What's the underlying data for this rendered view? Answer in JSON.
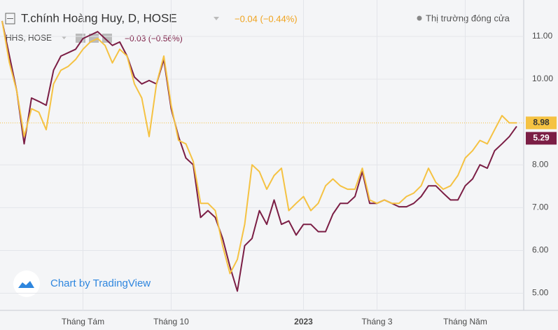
{
  "chart_data": {
    "type": "line",
    "header": {
      "title": "T.chính Hoàng Huy, D, HOSE",
      "change": "−0.04 (−0.44%)",
      "status": "Thị trường đóng cửa",
      "compare_title": "HHS, HOSE",
      "compare_change": "−0.03 (−0.56%)",
      "watermark": "Chart by TradingView"
    },
    "categories": [
      null,
      null,
      null,
      null,
      null,
      null,
      null,
      null,
      null,
      null,
      null,
      "Tháng Tám",
      null,
      null,
      null,
      null,
      null,
      null,
      null,
      null,
      null,
      null,
      null,
      "Tháng 10",
      null,
      null,
      null,
      null,
      null,
      null,
      null,
      null,
      null,
      null,
      null,
      null,
      null,
      null,
      null,
      null,
      null,
      "2023",
      null,
      null,
      null,
      null,
      null,
      null,
      null,
      null,
      null,
      "Tháng 3",
      null,
      null,
      null,
      null,
      null,
      null,
      null,
      null,
      null,
      null,
      null,
      "Tháng Năm",
      null,
      null,
      null,
      null,
      null,
      null,
      null
    ],
    "series": [
      {
        "name": "T.chính Hoàng Huy",
        "color": "#f5c242",
        "last_label": "8.98",
        "values": [
          11.36,
          10.38,
          9.72,
          8.66,
          9.31,
          9.23,
          8.82,
          9.89,
          10.21,
          10.3,
          10.46,
          10.7,
          10.87,
          10.95,
          10.79,
          10.38,
          10.7,
          10.54,
          9.89,
          9.56,
          8.66,
          9.89,
          10.54,
          9.39,
          8.57,
          8.49,
          8.08,
          7.1,
          7.1,
          6.93,
          6.11,
          5.46,
          5.79,
          6.61,
          8.0,
          7.84,
          7.43,
          7.75,
          7.92,
          6.93,
          7.1,
          7.26,
          6.93,
          7.1,
          7.51,
          7.67,
          7.51,
          7.43,
          7.43,
          7.92,
          7.18,
          7.1,
          7.18,
          7.1,
          7.1,
          7.26,
          7.34,
          7.51,
          7.92,
          7.59,
          7.43,
          7.51,
          7.75,
          8.16,
          8.33,
          8.57,
          8.49,
          8.82,
          9.15,
          8.98,
          8.98
        ]
      },
      {
        "name": "HHS",
        "color": "#7b1e45",
        "last_label": "5.29",
        "values": [
          11.36,
          10.54,
          9.72,
          8.49,
          9.56,
          9.48,
          9.39,
          10.21,
          10.54,
          10.62,
          10.7,
          10.95,
          11.03,
          11.11,
          10.95,
          10.79,
          10.87,
          10.54,
          10.05,
          9.89,
          9.97,
          9.89,
          10.46,
          9.31,
          8.66,
          8.16,
          8.0,
          6.77,
          6.93,
          6.77,
          6.28,
          5.62,
          5.05,
          6.11,
          6.28,
          6.93,
          6.61,
          7.18,
          6.61,
          6.69,
          6.36,
          6.61,
          6.61,
          6.44,
          6.44,
          6.85,
          7.1,
          7.1,
          7.26,
          7.84,
          7.1,
          7.1,
          7.18,
          7.1,
          7.02,
          7.02,
          7.1,
          7.26,
          7.51,
          7.51,
          7.34,
          7.18,
          7.18,
          7.51,
          7.67,
          8.0,
          7.92,
          8.33,
          8.49,
          8.66,
          8.9
        ]
      }
    ],
    "ylim": [
      4.6,
      11.85
    ],
    "yticks": [
      {
        "value": 11,
        "label": "11.00"
      },
      {
        "value": 10,
        "label": "10.00"
      },
      {
        "value": 8,
        "label": "8.00"
      },
      {
        "value": 7,
        "label": "7.00"
      },
      {
        "value": 6,
        "label": "6.00"
      },
      {
        "value": 5,
        "label": "5.00"
      }
    ],
    "grid": true
  }
}
